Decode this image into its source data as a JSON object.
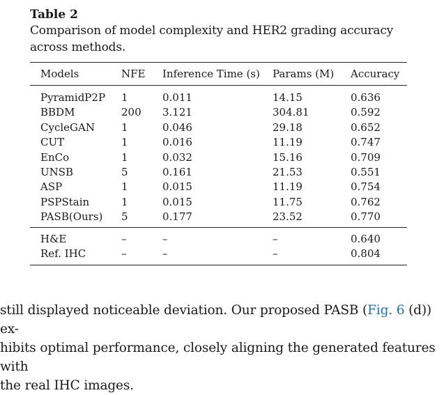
{
  "table": {
    "label": "Table 2",
    "caption": "Comparison of model complexity and HER2 grading accuracy across methods.",
    "headers": [
      "Models",
      "NFE",
      "Inference Time (s)",
      "Params (M)",
      "Accuracy"
    ],
    "rows": [
      [
        "PyramidP2P",
        "1",
        "0.011",
        "14.15",
        "0.636"
      ],
      [
        "BBDM",
        "200",
        "3.121",
        "304.81",
        "0.592"
      ],
      [
        "CycleGAN",
        "1",
        "0.046",
        "29.18",
        "0.652"
      ],
      [
        "CUT",
        "1",
        "0.016",
        "11.19",
        "0.747"
      ],
      [
        "EnCo",
        "1",
        "0.032",
        "15.16",
        "0.709"
      ],
      [
        "UNSB",
        "5",
        "0.161",
        "21.53",
        "0.551"
      ],
      [
        "ASP",
        "1",
        "0.015",
        "11.19",
        "0.754"
      ],
      [
        "PSPStain",
        "1",
        "0.015",
        "11.75",
        "0.762"
      ],
      [
        "PASB(Ours)",
        "5",
        "0.177",
        "23.52",
        "0.770"
      ]
    ],
    "reference_rows": [
      [
        "H&E",
        "–",
        "–",
        "–",
        "0.640"
      ],
      [
        "Ref. IHC",
        "–",
        "–",
        "–",
        "0.804"
      ]
    ]
  },
  "paragraph": {
    "line1_before": "still displayed noticeable deviation. Our proposed PASB (",
    "fig_link": "Fig. 6",
    "line1_after": " (d)) ex-",
    "line2": "hibits optimal performance, closely aligning the generated features with",
    "line3": "the real IHC images."
  }
}
